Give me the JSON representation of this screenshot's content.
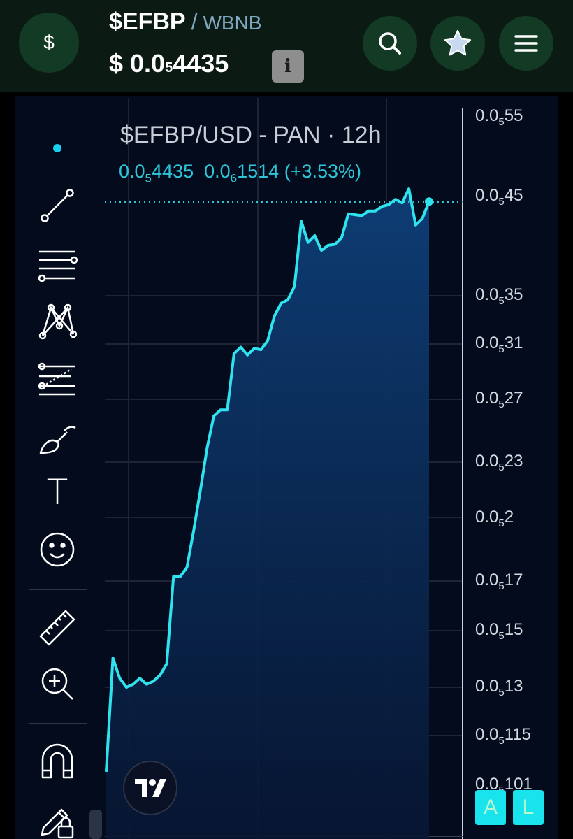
{
  "header": {
    "coin_symbol": "$",
    "base": "$EFBP",
    "separator": "/",
    "quote": "WBNB",
    "price_prefix": "$ 0.0",
    "price_zeros": "5",
    "price_digits": "4435",
    "info_label": "i",
    "icons": [
      "search-icon",
      "star-icon",
      "menu-icon"
    ]
  },
  "toolbar": {
    "icons": [
      "crosshair-dot-icon",
      "trend-line-icon",
      "horizontal-lines-icon",
      "pattern-icon",
      "fib-icon",
      "brush-icon",
      "text-icon",
      "emoji-icon",
      "ruler-icon",
      "zoom-in-icon",
      "magnet-icon",
      "lock-drawing-icon"
    ],
    "text_tool_label": "T"
  },
  "chart": {
    "title": "$EFBP/USD - PAN · 12h",
    "ohlc": {
      "last_prefix": "0.0",
      "last_zeros": "5",
      "last_digits": "4435",
      "change_prefix": "0.0",
      "change_zeros": "6",
      "change_digits": "1514",
      "change_pct": "(+3.53%)"
    },
    "y_axis": [
      {
        "p": "0.0",
        "z": "5",
        "d": "55"
      },
      {
        "p": "0.0",
        "z": "5",
        "d": "45"
      },
      {
        "p": "0.0",
        "z": "5",
        "d": "35"
      },
      {
        "p": "0.0",
        "z": "5",
        "d": "31"
      },
      {
        "p": "0.0",
        "z": "5",
        "d": "27"
      },
      {
        "p": "0.0",
        "z": "5",
        "d": "23"
      },
      {
        "p": "0.0",
        "z": "5",
        "d": "2"
      },
      {
        "p": "0.0",
        "z": "5",
        "d": "17"
      },
      {
        "p": "0.0",
        "z": "5",
        "d": "15"
      },
      {
        "p": "0.0",
        "z": "5",
        "d": "13"
      },
      {
        "p": "0.0",
        "z": "5",
        "d": "115"
      },
      {
        "p": "0.0",
        "z": "5",
        "d": "101"
      }
    ],
    "line_color": "#2fe3ee",
    "fill_color": "#0e3a6e",
    "last_value_line_color": "#2ec5d6",
    "series_price_e5": [
      1.05,
      1.4,
      1.33,
      1.3,
      1.31,
      1.33,
      1.31,
      1.32,
      1.34,
      1.38,
      1.72,
      1.72,
      1.76,
      1.93,
      2.14,
      2.38,
      2.58,
      2.62,
      2.62,
      3.02,
      3.07,
      3.01,
      3.06,
      3.05,
      3.12,
      3.32,
      3.43,
      3.46,
      3.58,
      4.22,
      4.0,
      4.07,
      3.92,
      3.97,
      3.98,
      4.05,
      4.3,
      4.29,
      4.28,
      4.33,
      4.33,
      4.38,
      4.4,
      4.46,
      4.42,
      4.58,
      4.18,
      4.25,
      4.435
    ]
  },
  "corner_buttons": {
    "a_label": "A",
    "l_label": "L"
  }
}
